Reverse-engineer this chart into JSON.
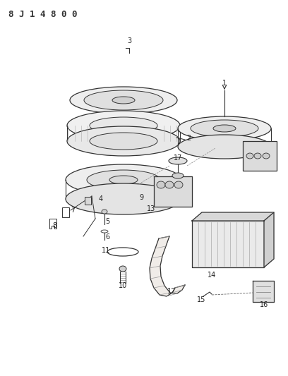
{
  "title": "8 J 1 4 8 0 0",
  "bg_color": "#ffffff",
  "line_color": "#333333"
}
